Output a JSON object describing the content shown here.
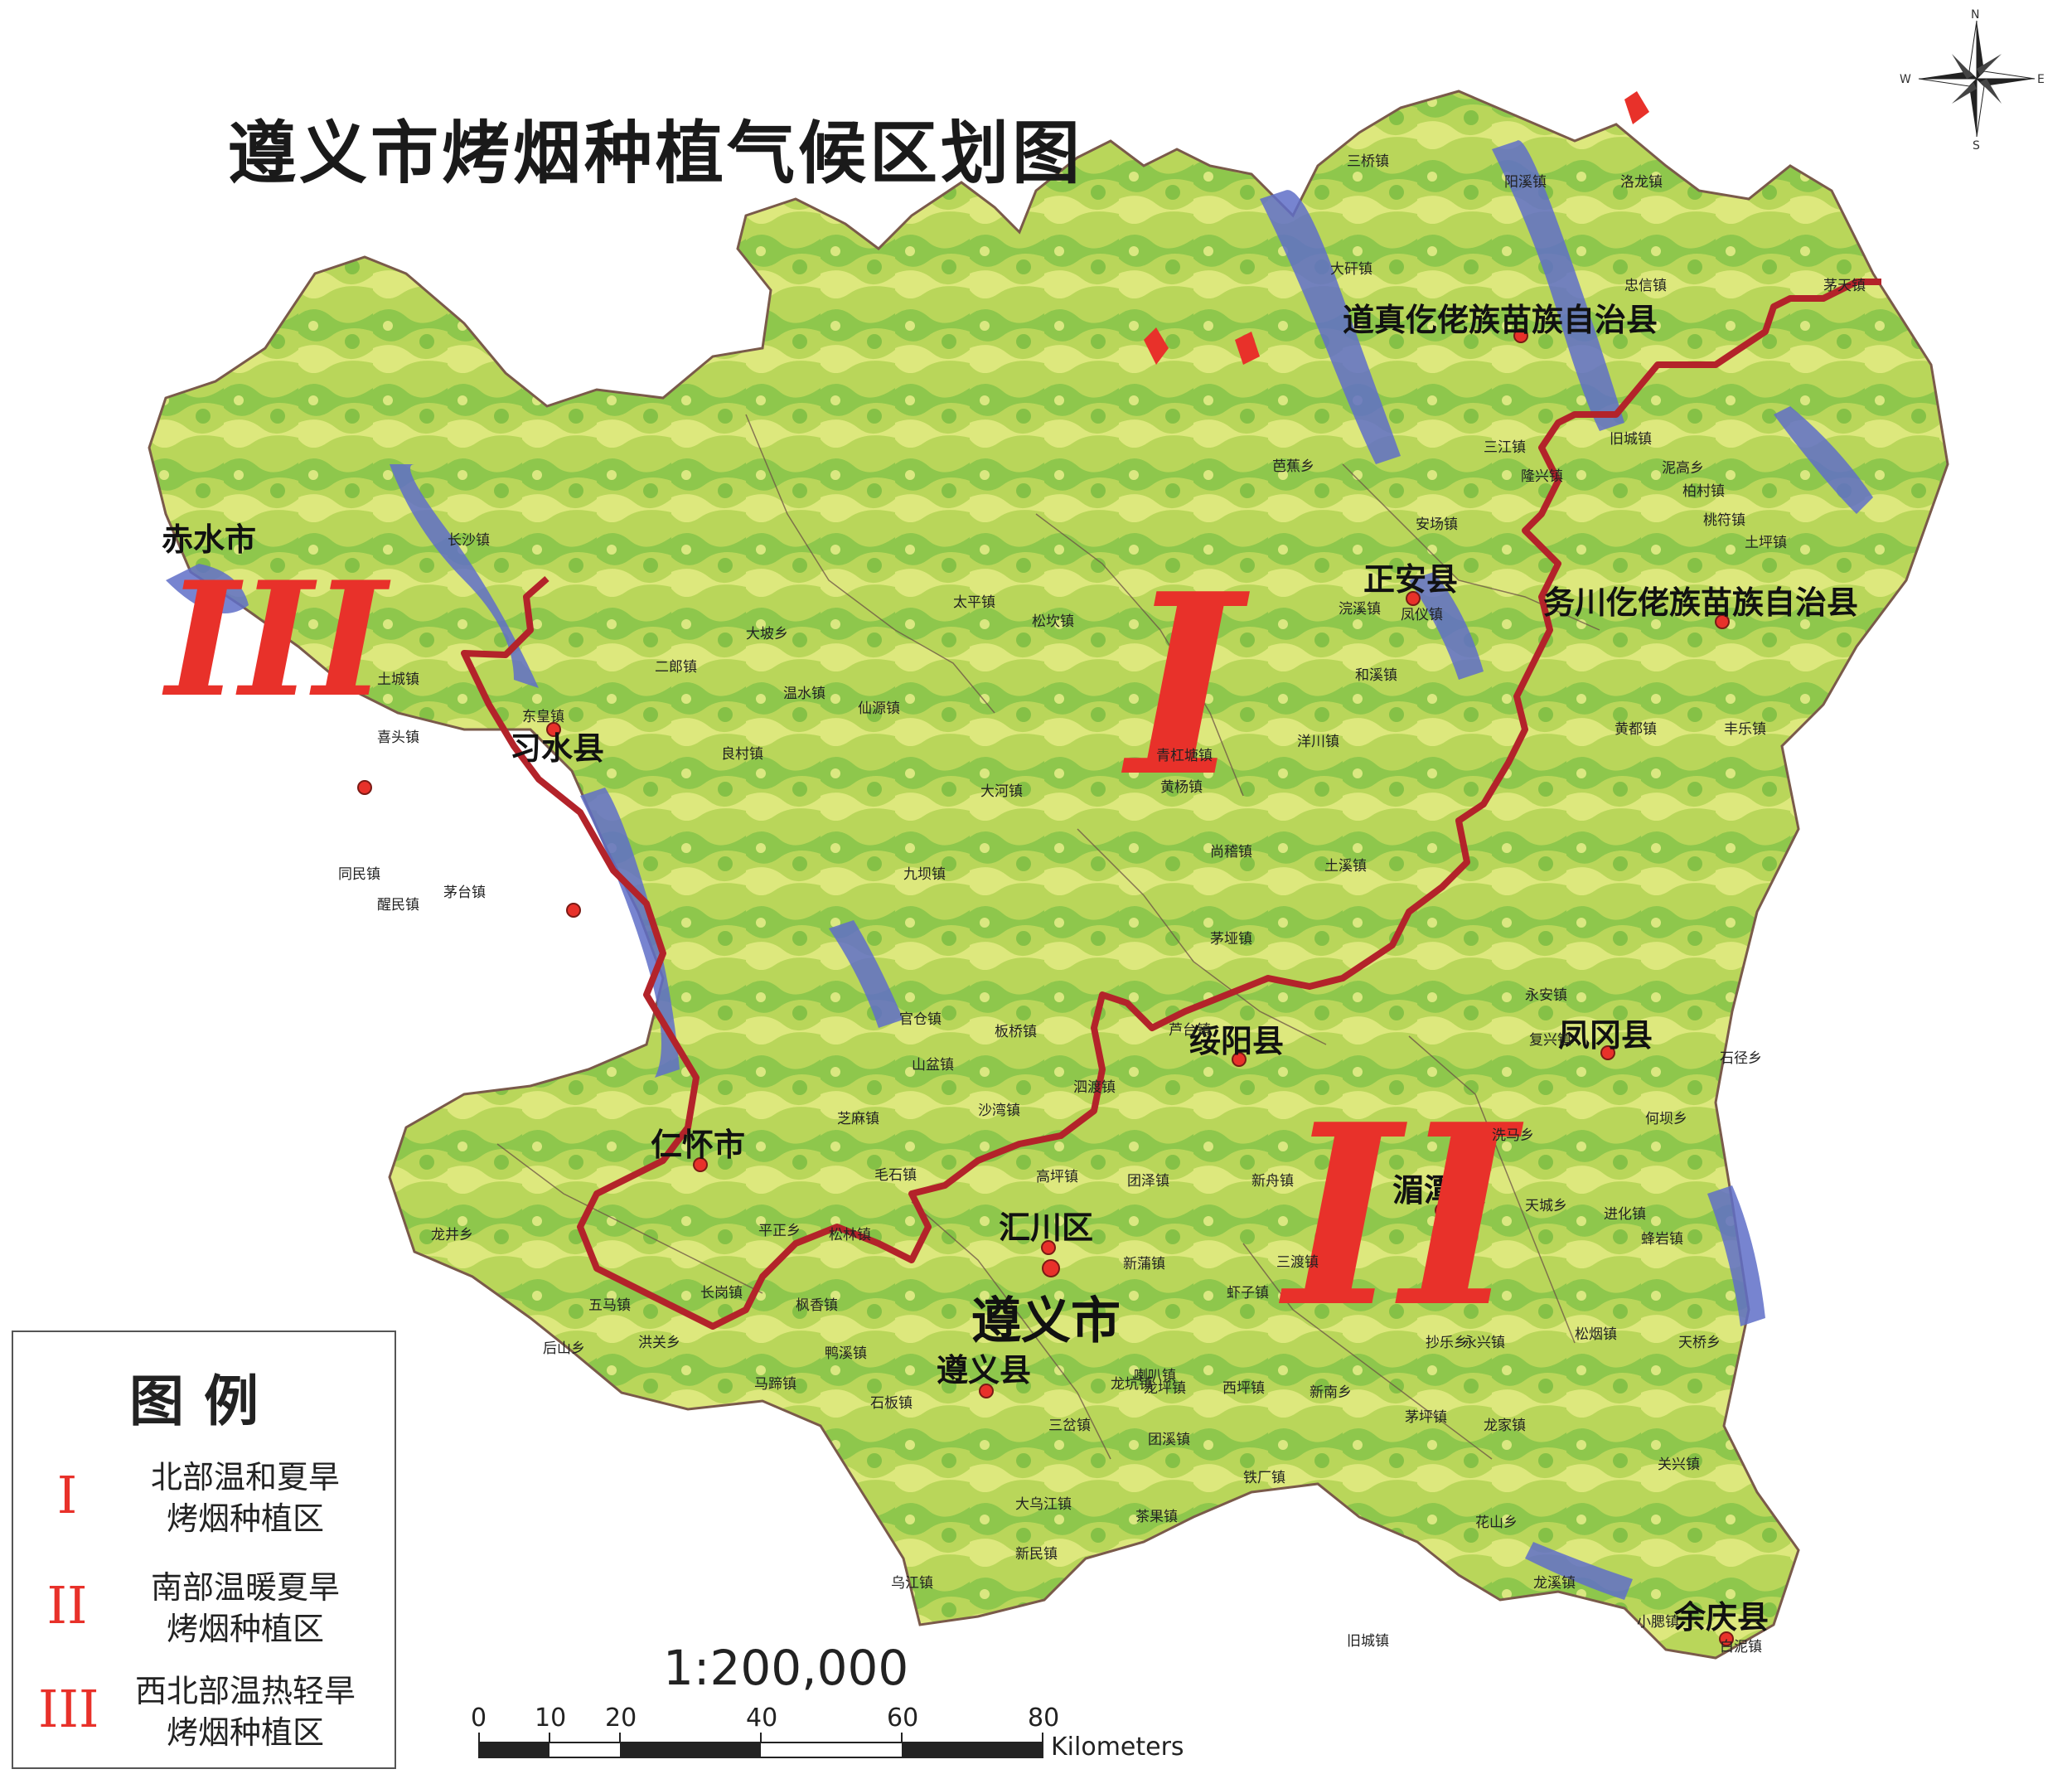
{
  "title": "遵义市烤烟种植气候区划图",
  "colors": {
    "lowland_green": "#7bc043",
    "mid_yellow_green": "#c8dd5a",
    "upland_yellow": "#eef08f",
    "valley_blue": "#5f6fc8",
    "boundary_red": "#b3232a",
    "zone_label_red": "#e8312a",
    "seat_dot": "#e8312a"
  },
  "counties": [
    {
      "name": "道真仡佬族苗族自治县"
    },
    {
      "name": "正安县"
    },
    {
      "name": "务川仡佬族苗族自治县"
    },
    {
      "name": "赤水市"
    },
    {
      "name": "习水县"
    },
    {
      "name": "绥阳县"
    },
    {
      "name": "凤冈县"
    },
    {
      "name": "仁怀市"
    },
    {
      "name": "汇川区"
    },
    {
      "name": "湄潭县"
    },
    {
      "name": "遵义市"
    },
    {
      "name": "遵义县"
    },
    {
      "name": "余庆县"
    }
  ],
  "towns": [
    "三桥镇",
    "阳溪镇",
    "洛龙镇",
    "大矸镇",
    "忠信镇",
    "茅天镇",
    "三江镇",
    "隆兴镇",
    "旧城镇",
    "泥高乡",
    "柏村镇",
    "桃符镇",
    "安场镇",
    "芭蕉乡",
    "土坪镇",
    "浣溪镇",
    "凤仪镇",
    "和溪镇",
    "黄都镇",
    "丰乐镇",
    "温水镇",
    "仙源镇",
    "良村镇",
    "松坎镇",
    "太平镇",
    "青杠塘镇",
    "洋川镇",
    "茅垭镇",
    "土溪镇",
    "永安镇",
    "新舟镇",
    "团泽镇",
    "高坪镇",
    "三渡镇",
    "虾子镇",
    "永兴镇",
    "天城乡",
    "进化镇",
    "蜂岩镇",
    "松烟镇",
    "龙家镇",
    "抄乐乡",
    "茅坪镇",
    "新南乡",
    "西坪镇",
    "鸭溪镇",
    "马蹄镇",
    "石板镇",
    "乌江镇",
    "龙坑镇",
    "花山乡",
    "龙溪镇",
    "大河镇",
    "官仓镇",
    "九坝镇",
    "长沙镇",
    "东皇镇",
    "二郎镇",
    "大坡乡",
    "同民镇",
    "醒民镇",
    "土城镇",
    "喜头镇",
    "茅台镇",
    "五马镇",
    "长岗镇",
    "后山乡",
    "洪关乡",
    "龙井乡",
    "毛石镇",
    "平正乡",
    "松林镇",
    "枫香镇",
    "山盆镇",
    "沙湾镇",
    "芝麻镇",
    "板桥镇",
    "泗渡镇",
    "芦台镇",
    "黄杨镇",
    "尚稽镇",
    "新民镇",
    "茶果镇",
    "铁厂镇",
    "三岔镇",
    "团溪镇",
    "喇叭镇",
    "新蒲镇",
    "龙坪镇",
    "洗马乡",
    "复兴镇",
    "何坝乡",
    "石径乡",
    "天桥乡",
    "关兴镇",
    "大乌江镇",
    "小腮镇",
    "白泥镇",
    "旧城镇"
  ],
  "zones": [
    {
      "numeral": "I",
      "name_line1": "北部温和夏旱",
      "name_line2": "烤烟种植区"
    },
    {
      "numeral": "II",
      "name_line1": "南部温暖夏旱",
      "name_line2": "烤烟种植区"
    },
    {
      "numeral": "III",
      "name_line1": "西北部温热轻旱",
      "name_line2": "烤烟种植区"
    }
  ],
  "legend": {
    "title": "图例"
  },
  "scale": {
    "ratio": "1:200,000",
    "ticks": [
      "0",
      "10",
      "20",
      "40",
      "60",
      "80"
    ],
    "unit": "Kilometers"
  },
  "compass": {
    "n": "N",
    "s": "S",
    "e": "E",
    "w": "W"
  }
}
